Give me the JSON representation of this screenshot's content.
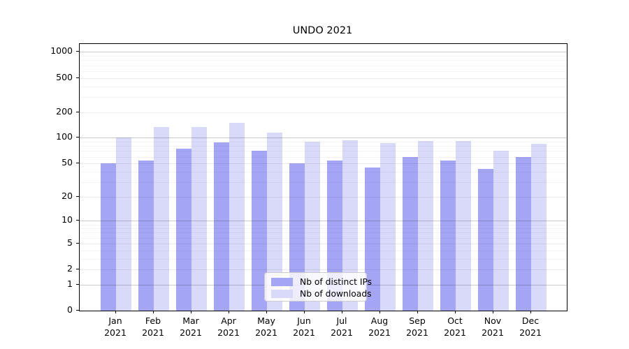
{
  "chart_data": {
    "type": "bar",
    "title": "UNDO 2021",
    "x_months": [
      "Jan",
      "Feb",
      "Mar",
      "Apr",
      "May",
      "Jun",
      "Jul",
      "Aug",
      "Sep",
      "Oct",
      "Nov",
      "Dec"
    ],
    "x_year": "2021",
    "series": [
      {
        "name": "Nb of distinct IPs",
        "color": "#a5a5f6",
        "values": [
          50,
          54,
          74,
          88,
          70,
          50,
          54,
          45,
          60,
          54,
          43,
          59
        ]
      },
      {
        "name": "Nb of downloads",
        "color": "#d9d9fa",
        "values": [
          100,
          135,
          135,
          150,
          115,
          90,
          93,
          87,
          92,
          91,
          70,
          85
        ]
      }
    ],
    "yscale": "log1p",
    "yticks": [
      1000,
      500,
      200,
      100,
      50,
      20,
      10,
      5,
      2,
      1,
      0
    ],
    "ylim": [
      0,
      1240
    ],
    "grid": "both",
    "legend": {
      "position": "lower center",
      "entries": [
        "Nb of distinct IPs",
        "Nb of downloads"
      ]
    },
    "grid_colors": {
      "major": "rgba(0,0,0,0.20)",
      "mid": "rgba(0,0,0,0.08)",
      "minor": "rgba(0,0,0,0.045)"
    }
  }
}
